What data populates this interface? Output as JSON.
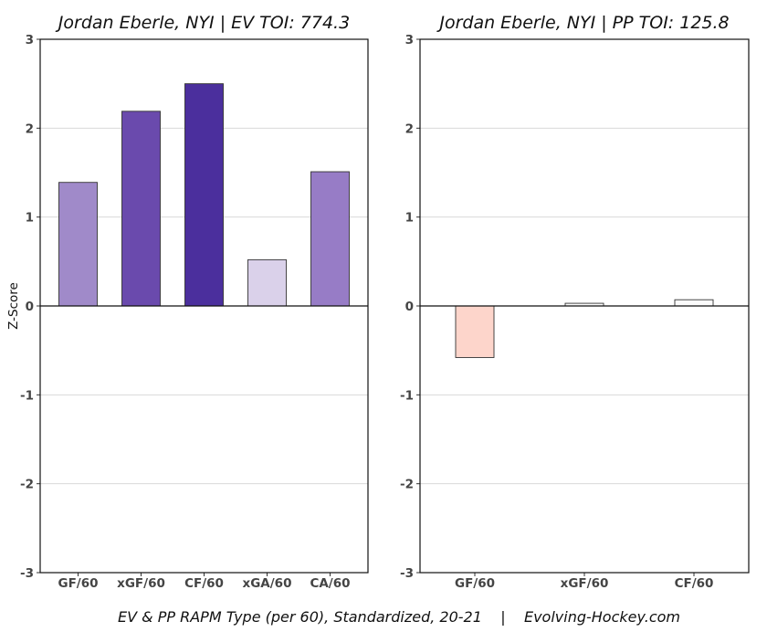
{
  "caption": "EV & PP RAPM Type (per 60), Standardized, 20-21    |    Evolving-Hockey.com",
  "chart_data": [
    {
      "type": "bar",
      "title": "Jordan Eberle, NYI  |  EV TOI: 774.3",
      "ylabel": "Z-Score",
      "xlabel": "",
      "ylim": [
        -3,
        3
      ],
      "yticks": [
        -3,
        -2,
        -1,
        0,
        1,
        2,
        3
      ],
      "grid": "horizontal",
      "categories": [
        "GF/60",
        "xGF/60",
        "CF/60",
        "xGA/60",
        "CA/60"
      ],
      "values": [
        1.39,
        2.19,
        2.5,
        0.52,
        1.51
      ],
      "colors": [
        "#a08ac9",
        "#6a4aad",
        "#4b2f9d",
        "#dad1ea",
        "#977cc6"
      ]
    },
    {
      "type": "bar",
      "title": "Jordan Eberle, NYI  |  PP TOI: 125.8",
      "ylabel": "",
      "xlabel": "",
      "ylim": [
        -3,
        3
      ],
      "yticks": [
        -3,
        -2,
        -1,
        0,
        1,
        2,
        3
      ],
      "grid": "horizontal",
      "categories": [
        "GF/60",
        "xGF/60",
        "CF/60"
      ],
      "values": [
        -0.58,
        0.03,
        0.07
      ],
      "colors": [
        "#fdd5cb",
        "#fbfbfb",
        "#fbfbfb"
      ]
    }
  ]
}
